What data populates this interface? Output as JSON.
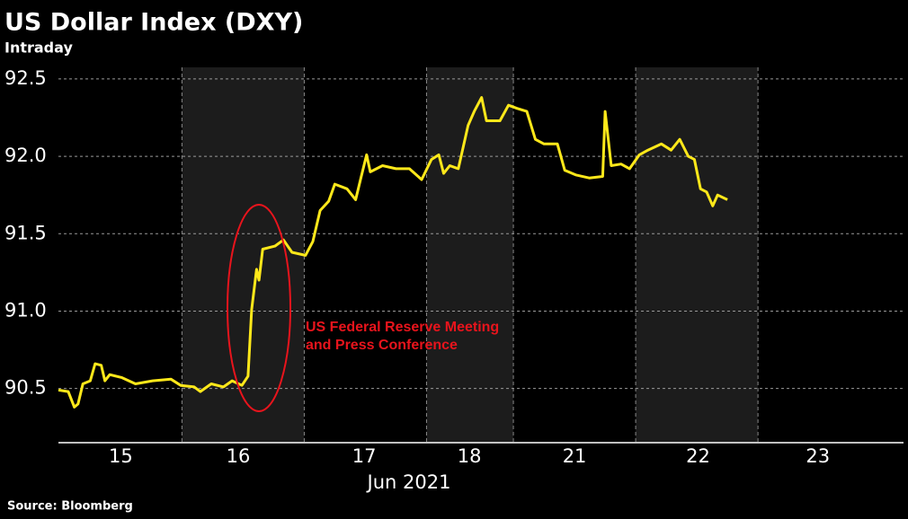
{
  "chart_data": {
    "type": "line",
    "title": "US Dollar Index (DXY)",
    "subtitle": "Intraday",
    "x_label": "Jun 2021",
    "source": "Source: Bloomberg",
    "annotation": [
      "US Federal Reserve Meeting",
      "and Press Conference"
    ],
    "x": [
      -0.01,
      0.07,
      0.12,
      0.15,
      0.19,
      0.25,
      0.29,
      0.34,
      0.37,
      0.41,
      0.51,
      0.62,
      0.76,
      0.91,
      0.99,
      1.1,
      1.15,
      1.24,
      1.34,
      1.41,
      1.49,
      1.54,
      1.57,
      1.61,
      1.63,
      1.66,
      1.76,
      1.83,
      1.9,
      2.01,
      2.07,
      2.13,
      2.2,
      2.25,
      2.35,
      2.42,
      2.46,
      2.51,
      2.54,
      2.64,
      2.75,
      2.86,
      2.96,
      3.04,
      3.1,
      3.14,
      3.19,
      3.26,
      3.34,
      3.39,
      3.45,
      3.49,
      3.6,
      3.67,
      3.74,
      3.82,
      3.89,
      3.96,
      4.07,
      4.13,
      4.22,
      4.33,
      4.44,
      4.46,
      4.51,
      4.59,
      4.66,
      4.74,
      4.81,
      4.92,
      5.0,
      5.07,
      5.14,
      5.19,
      5.24,
      5.29,
      5.34,
      5.38,
      5.46
    ],
    "series": [
      {
        "name": "DXY",
        "color": "#ffe81a",
        "values": [
          90.49,
          90.48,
          90.38,
          90.4,
          90.53,
          90.55,
          90.66,
          90.65,
          90.55,
          90.59,
          90.57,
          90.53,
          90.55,
          90.56,
          90.52,
          90.51,
          90.48,
          90.53,
          90.51,
          90.55,
          90.52,
          90.58,
          91.01,
          91.27,
          91.2,
          91.4,
          91.42,
          91.46,
          91.38,
          91.36,
          91.45,
          91.65,
          91.71,
          91.82,
          91.79,
          91.72,
          91.85,
          92.01,
          91.9,
          91.94,
          91.92,
          91.92,
          91.85,
          91.98,
          92.01,
          91.89,
          91.94,
          91.92,
          92.2,
          92.29,
          92.38,
          92.23,
          92.23,
          92.33,
          92.31,
          92.29,
          92.11,
          92.08,
          92.08,
          91.91,
          91.88,
          91.86,
          91.87,
          92.29,
          91.94,
          91.95,
          91.92,
          92.01,
          92.04,
          92.08,
          92.04,
          92.11,
          92.0,
          91.98,
          91.79,
          91.77,
          91.68,
          91.75,
          91.72
        ]
      }
    ],
    "xlim": [
      -0.01,
      6.9
    ],
    "xticks": [
      {
        "value": 0.5,
        "label": "15"
      },
      {
        "value": 1.46,
        "label": "16"
      },
      {
        "value": 2.49,
        "label": "17"
      },
      {
        "value": 3.35,
        "label": "18"
      },
      {
        "value": 4.21,
        "label": "21"
      },
      {
        "value": 5.22,
        "label": "22"
      },
      {
        "value": 6.2,
        "label": "23"
      }
    ],
    "shaded_bands": [
      [
        1,
        2
      ],
      [
        3,
        3.71
      ],
      [
        4.71,
        5.71
      ]
    ],
    "ylim": [
      90.15,
      92.575
    ],
    "yticks": [
      90.5,
      {
        "value": 91,
        "label": "91.0"
      },
      91.5,
      {
        "value": 92,
        "label": "92.0"
      },
      92.5
    ],
    "grid": true
  }
}
